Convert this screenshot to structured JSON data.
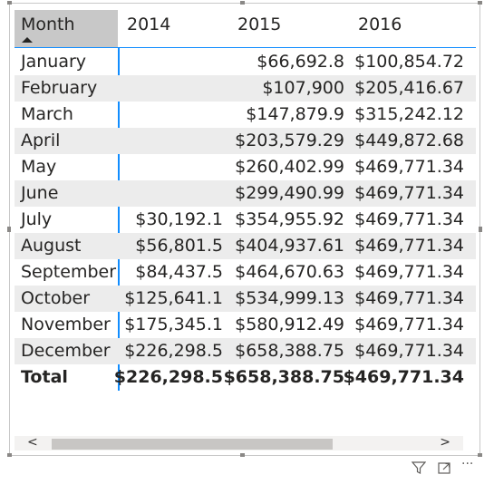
{
  "matrix": {
    "row_header": "Month",
    "columns": [
      "2014",
      "2015",
      "2016"
    ],
    "rows": [
      {
        "month": "January",
        "y2014": "",
        "y2015": "$66,692.8",
        "y2016": "$100,854.72"
      },
      {
        "month": "February",
        "y2014": "",
        "y2015": "$107,900",
        "y2016": "$205,416.67"
      },
      {
        "month": "March",
        "y2014": "",
        "y2015": "$147,879.9",
        "y2016": "$315,242.12"
      },
      {
        "month": "April",
        "y2014": "",
        "y2015": "$203,579.29",
        "y2016": "$449,872.68"
      },
      {
        "month": "May",
        "y2014": "",
        "y2015": "$260,402.99",
        "y2016": "$469,771.34"
      },
      {
        "month": "June",
        "y2014": "",
        "y2015": "$299,490.99",
        "y2016": "$469,771.34"
      },
      {
        "month": "July",
        "y2014": "$30,192.1",
        "y2015": "$354,955.92",
        "y2016": "$469,771.34"
      },
      {
        "month": "August",
        "y2014": "$56,801.5",
        "y2015": "$404,937.61",
        "y2016": "$469,771.34"
      },
      {
        "month": "September",
        "y2014": "$84,437.5",
        "y2015": "$464,670.63",
        "y2016": "$469,771.34"
      },
      {
        "month": "October",
        "y2014": "$125,641.1",
        "y2015": "$534,999.13",
        "y2016": "$469,771.34"
      },
      {
        "month": "November",
        "y2014": "$175,345.1",
        "y2015": "$580,912.49",
        "y2016": "$469,771.34"
      },
      {
        "month": "December",
        "y2014": "$226,298.5",
        "y2015": "$658,388.75",
        "y2016": "$469,771.34"
      }
    ],
    "total": {
      "label": "Total",
      "y2014": "$226,298.5",
      "y2015": "$658,388.75",
      "y2016": "$469,771.34"
    }
  },
  "scrollbar": {
    "left_arrow": "<",
    "right_arrow": ">"
  },
  "toolbar": {
    "icons": [
      "filter-icon",
      "focus-mode-icon",
      "more-options-icon"
    ],
    "more_label": "···"
  },
  "colors": {
    "accent": "#118dff",
    "header_bg": "#c8c8c8",
    "row_band": "#ececec"
  }
}
